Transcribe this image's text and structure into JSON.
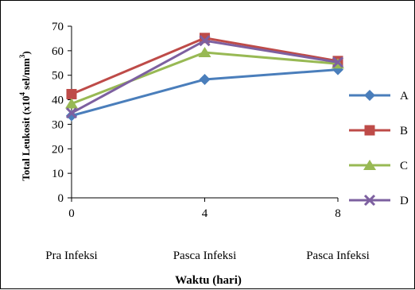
{
  "chart_data": {
    "type": "line",
    "x": [
      0,
      4,
      8
    ],
    "x_tick_labels": [
      "0",
      "4",
      "8"
    ],
    "x_category_labels": [
      "Pra Infeksi",
      "Pasca Infeksi",
      "Pasca Infeksi"
    ],
    "xlabel": "Waktu (hari)",
    "ylabel_parts": {
      "prefix": "Total Leukosit (x10",
      "sup1": "4",
      "middle": " sel/mm",
      "sup2": "3",
      "suffix": ")"
    },
    "ylim": [
      0,
      70
    ],
    "y_ticks": [
      0,
      10,
      20,
      30,
      40,
      50,
      60,
      70
    ],
    "grid": false,
    "legend_position": "right",
    "series": [
      {
        "name": "A",
        "values": [
          33.5,
          48.3,
          52.3
        ],
        "color": "#4a7ebb",
        "marker": "diamond"
      },
      {
        "name": "B",
        "values": [
          42.3,
          65.2,
          55.8
        ],
        "color": "#be4b48",
        "marker": "square"
      },
      {
        "name": "C",
        "values": [
          38.4,
          59.3,
          54.7
        ],
        "color": "#98b954",
        "marker": "triangle"
      },
      {
        "name": "D",
        "values": [
          34.6,
          64.1,
          55.3
        ],
        "color": "#7d60a0",
        "marker": "x"
      }
    ]
  }
}
